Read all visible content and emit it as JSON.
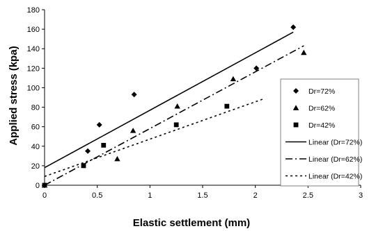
{
  "chart_data": {
    "type": "scatter",
    "title": "",
    "xlabel": "Elastic settlement (mm)",
    "ylabel": "Applied stress (kpa)",
    "xlim": [
      0,
      3
    ],
    "ylim": [
      0,
      180
    ],
    "x_ticks": [
      0,
      0.5,
      1,
      1.5,
      2,
      2.5,
      3
    ],
    "x_tick_labels": [
      "0",
      "0.5",
      "1",
      "1.5",
      "2",
      "2.5",
      "3"
    ],
    "y_ticks": [
      0,
      20,
      40,
      60,
      80,
      100,
      120,
      140,
      160,
      180
    ],
    "y_tick_labels": [
      "0",
      "20",
      "40",
      "60",
      "80",
      "100",
      "120",
      "140",
      "160",
      "180"
    ],
    "grid": false,
    "legend_position": "right",
    "series": [
      {
        "name": "Dr=72%",
        "marker": "diamond",
        "points": [
          [
            0,
            0
          ],
          [
            0.41,
            35
          ],
          [
            0.52,
            62
          ],
          [
            0.85,
            93
          ],
          [
            2.01,
            120
          ],
          [
            2.36,
            162
          ]
        ]
      },
      {
        "name": "Dr=62%",
        "marker": "triangle",
        "points": [
          [
            0,
            0
          ],
          [
            0.69,
            27
          ],
          [
            0.84,
            56
          ],
          [
            1.26,
            81
          ],
          [
            1.79,
            109
          ],
          [
            2.46,
            136
          ]
        ]
      },
      {
        "name": "Dr=42%",
        "marker": "square",
        "points": [
          [
            0,
            0
          ],
          [
            0.37,
            20
          ],
          [
            0.56,
            41
          ],
          [
            1.25,
            62
          ],
          [
            1.73,
            81
          ]
        ]
      }
    ],
    "trendlines": [
      {
        "name": "Linear (Dr=72%)",
        "dash": "solid",
        "x": [
          0,
          2.36
        ],
        "y": [
          18,
          157
        ]
      },
      {
        "name": "Linear (Dr=62%)",
        "dash": "dashdot",
        "x": [
          0,
          2.46
        ],
        "y": [
          0,
          143
        ]
      },
      {
        "name": "Linear (Dr=42%)",
        "dash": "dotted",
        "x": [
          0,
          2.09
        ],
        "y": [
          9,
          89
        ]
      }
    ],
    "colors": {
      "marker": "#000000",
      "line": "#000000",
      "legend_border": "#808080"
    }
  }
}
